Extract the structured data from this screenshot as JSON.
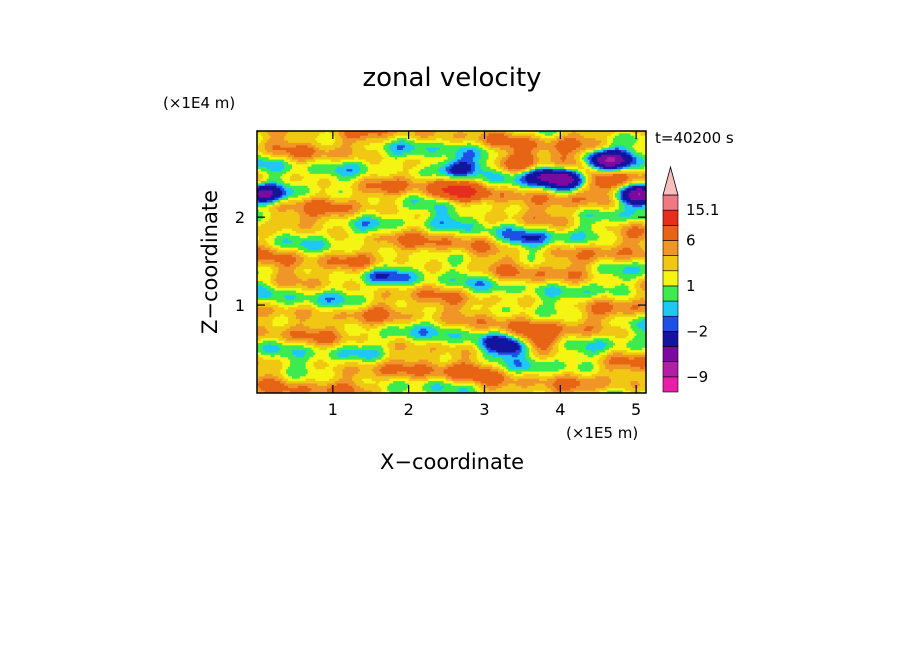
{
  "chart_data": {
    "type": "heatmap",
    "title": "zonal velocity",
    "xlabel": "X−coordinate",
    "ylabel": "Z−coordinate",
    "x_unit": "(×1E5 m)",
    "y_unit": "(×1E4 m)",
    "time_label": "t=40200 s",
    "xlim": [
      0,
      5.13
    ],
    "ylim": [
      0,
      2.98
    ],
    "xticks": [
      1,
      2,
      3,
      4,
      5
    ],
    "yticks": [
      1,
      2
    ],
    "colorbar": {
      "tick_labels": [
        "15.1",
        "6",
        "1",
        "−2",
        "−9"
      ],
      "tick_values": [
        15.1,
        6,
        1,
        -2,
        -9
      ],
      "levels": [
        -30,
        -9,
        -6,
        -3,
        -2,
        -1,
        0,
        1,
        2,
        3,
        6,
        9,
        15.1
      ],
      "colors": [
        "#e81eaa",
        "#b41ea6",
        "#7d0aa0",
        "#1414a0",
        "#1e50e6",
        "#1ec8f5",
        "#3ceb50",
        "#f5f514",
        "#f0c814",
        "#f09628",
        "#e66414",
        "#e62d1e",
        "#f07882",
        "#f8bebe"
      ],
      "extend": "max"
    },
    "features": [
      {
        "x": 2.62,
        "z": 2.28,
        "value": 5
      },
      {
        "x": 2.62,
        "z": 2.55,
        "value": -6
      },
      {
        "x": 3.45,
        "z": 2.62,
        "value": 4
      },
      {
        "x": 3.8,
        "z": 2.48,
        "value": -6
      },
      {
        "x": 4.2,
        "z": 2.62,
        "value": 5
      },
      {
        "x": 4.45,
        "z": 2.4,
        "value": 4
      },
      {
        "x": 4.15,
        "z": 2.42,
        "value": -6
      },
      {
        "x": 4.6,
        "z": 2.65,
        "value": -9
      },
      {
        "x": 5.05,
        "z": 2.25,
        "value": -9
      },
      {
        "x": 0.05,
        "z": 2.25,
        "value": -9
      },
      {
        "x": 2.55,
        "z": 1.95,
        "value": -2
      },
      {
        "x": 3.55,
        "z": 1.75,
        "value": -2
      },
      {
        "x": 1.65,
        "z": 1.35,
        "value": -2
      },
      {
        "x": 3.35,
        "z": 0.55,
        "value": -9
      },
      {
        "x": 3.55,
        "z": 0.58,
        "value": 6
      },
      {
        "x": 2.7,
        "z": 0.25,
        "value": 2
      },
      {
        "x": 0.8,
        "z": 0.15,
        "value": 0.5
      },
      {
        "x": 0.5,
        "z": 1.95,
        "value": 2
      }
    ]
  }
}
